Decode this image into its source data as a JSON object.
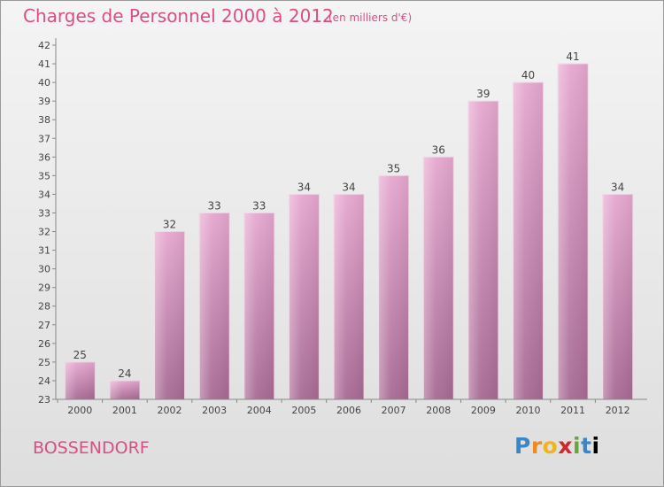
{
  "chart_data": {
    "type": "bar",
    "title": "Charges de Personnel 2000 à 2012",
    "subtitle": "(en milliers d'€)",
    "categories": [
      "2000",
      "2001",
      "2002",
      "2003",
      "2004",
      "2005",
      "2006",
      "2007",
      "2008",
      "2009",
      "2010",
      "2011",
      "2012"
    ],
    "values": [
      25,
      24,
      32,
      33,
      33,
      34,
      34,
      35,
      36,
      39,
      40,
      41,
      34
    ],
    "ylim": [
      23,
      42
    ],
    "yticks": [
      23,
      24,
      25,
      26,
      27,
      28,
      29,
      30,
      31,
      32,
      33,
      34,
      35,
      36,
      37,
      38,
      39,
      40,
      41,
      42
    ],
    "grid": false,
    "bar_color": "#c87eaa",
    "xlabel": "",
    "ylabel": ""
  },
  "footer": {
    "town": "BOSSENDORF",
    "logo": "Proxiti"
  },
  "colors": {
    "accent": "#d94f85"
  }
}
